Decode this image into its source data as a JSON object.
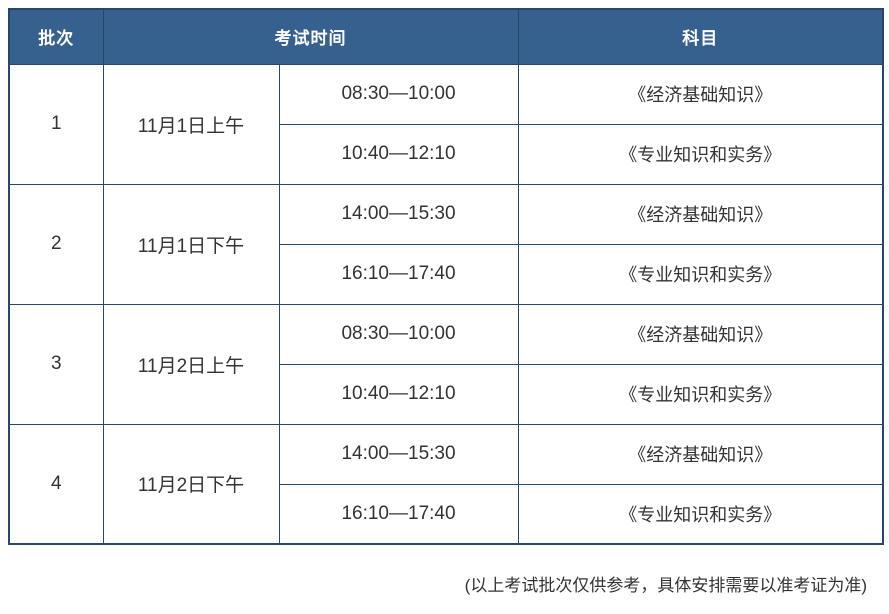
{
  "table": {
    "header": {
      "batch": "批次",
      "time": "考试时间",
      "subject": "科目"
    },
    "batches": [
      {
        "no": "1",
        "date": "11月1日上午",
        "slots": [
          {
            "time": "08:30—10:00",
            "subject": "《经济基础知识》"
          },
          {
            "time": "10:40—12:10",
            "subject": "《专业知识和实务》"
          }
        ]
      },
      {
        "no": "2",
        "date": "11月1日下午",
        "slots": [
          {
            "time": "14:00—15:30",
            "subject": "《经济基础知识》"
          },
          {
            "time": "16:10—17:40",
            "subject": "《专业知识和实务》"
          }
        ]
      },
      {
        "no": "3",
        "date": "11月2日上午",
        "slots": [
          {
            "time": "08:30—10:00",
            "subject": "《经济基础知识》"
          },
          {
            "time": "10:40—12:10",
            "subject": "《专业知识和实务》"
          }
        ]
      },
      {
        "no": "4",
        "date": "11月2日下午",
        "slots": [
          {
            "time": "14:00—15:30",
            "subject": "《经济基础知识》"
          },
          {
            "time": "16:10—17:40",
            "subject": "《专业知识和实务》"
          }
        ]
      }
    ]
  },
  "footer": {
    "note": "(以上考试批次仅供参考，具体安排需要以准考证为准)"
  },
  "colors": {
    "header_bg": "#36618E",
    "border": "#24476B",
    "text": "#333333",
    "header_text": "#FFFFFF"
  }
}
